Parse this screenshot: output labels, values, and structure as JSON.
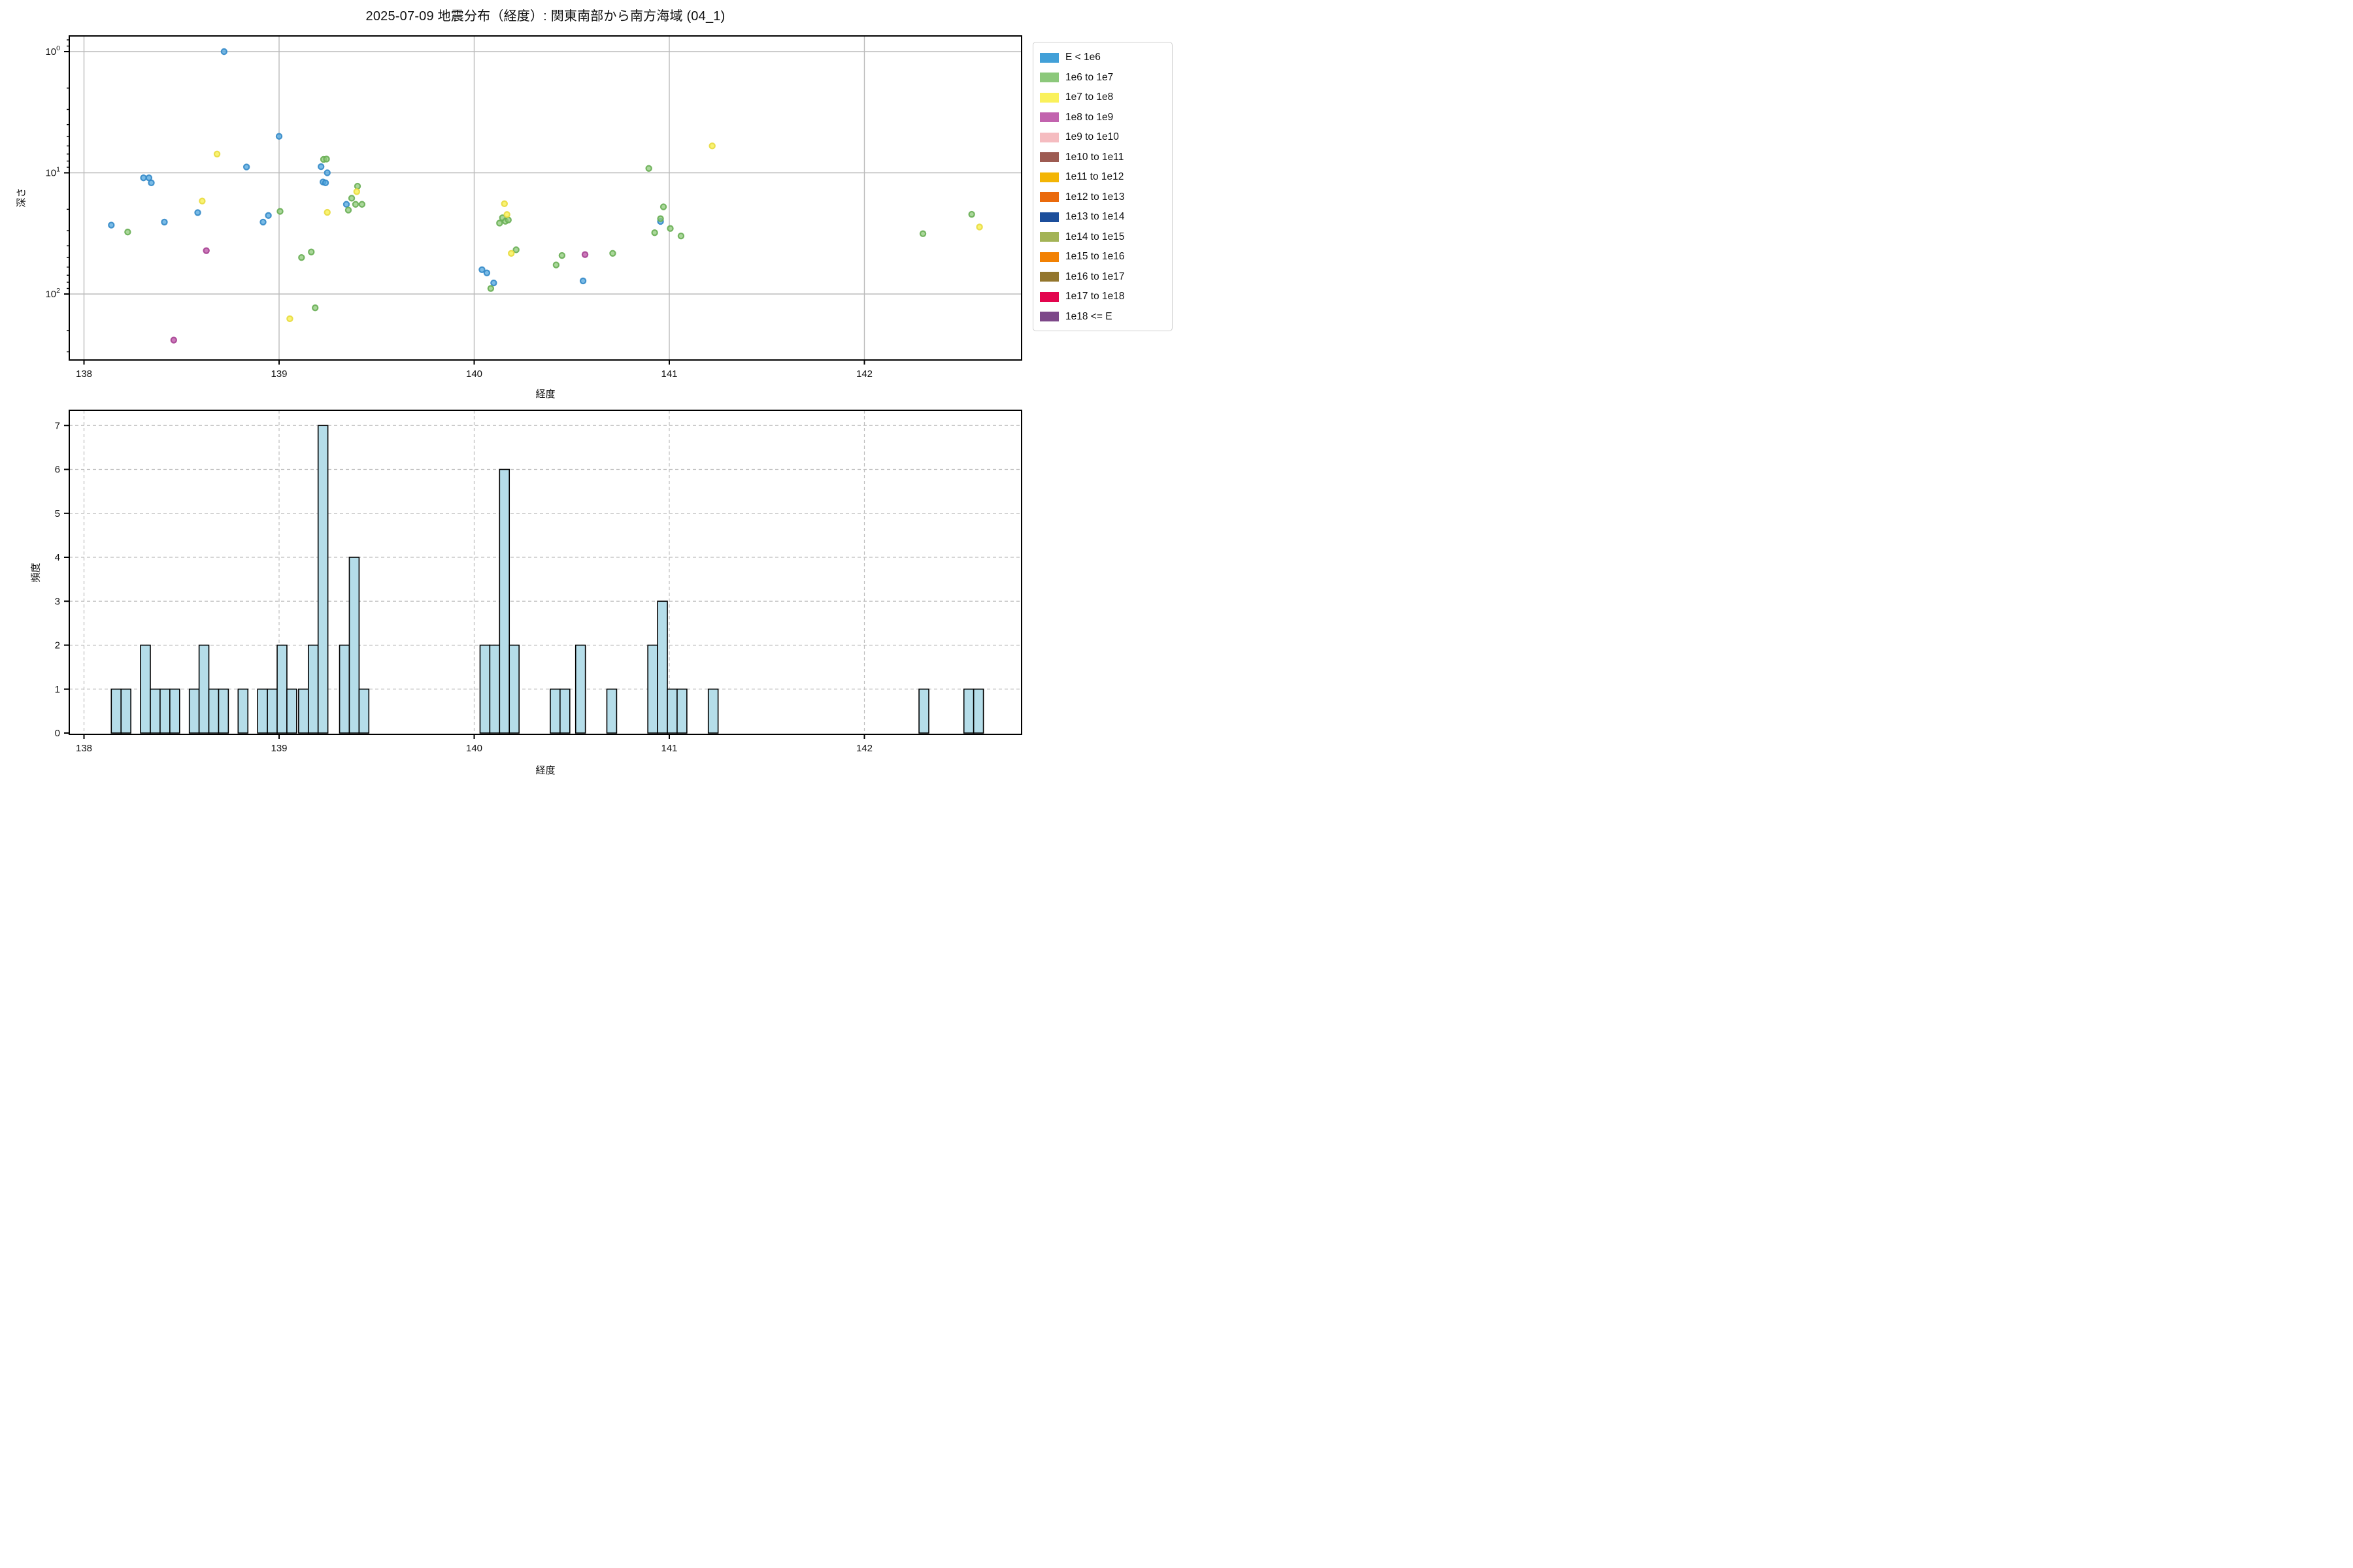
{
  "figure": {
    "title": "2025-07-09 地震分布（経度）: 関東南部から南方海域 (04_1)"
  },
  "chart_data": [
    {
      "type": "scatter",
      "title": "2025-07-09 地震分布（経度）: 関東南部から南方海域 (04_1)",
      "xlabel": "経度",
      "ylabel": "深さ",
      "x_ticks": [
        138,
        139,
        140,
        141,
        142
      ],
      "xlim": [
        137.925,
        142.805
      ],
      "y_scale": "log_inverted_depth",
      "y_tick_exponents": [
        0,
        1,
        2
      ],
      "y_minor_depths": [
        0.8,
        0.9,
        2,
        3,
        4,
        5,
        6,
        7,
        8,
        9,
        20,
        30,
        40,
        50,
        60,
        70,
        80,
        90,
        200,
        300
      ],
      "ylim_depth": [
        0.74,
        352
      ],
      "grid": "solid",
      "series": [
        {
          "name": "E < 1e6",
          "fill": "rgba(77,164,222,0.75)",
          "edge": "rgba(52,138,200,0.9)",
          "points": [
            [
              138.14,
              27
            ],
            [
              138.305,
              11
            ],
            [
              138.333,
              11
            ],
            [
              138.345,
              12.1
            ],
            [
              138.412,
              25.5
            ],
            [
              138.583,
              21.3
            ],
            [
              138.718,
              1.0
            ],
            [
              138.833,
              8.95
            ],
            [
              138.918,
              25.5
            ],
            [
              138.945,
              22.5
            ],
            [
              139.0,
              5.0
            ],
            [
              139.215,
              8.9
            ],
            [
              139.225,
              11.9
            ],
            [
              139.238,
              12.1
            ],
            [
              139.247,
              10.0
            ],
            [
              139.345,
              18.2
            ],
            [
              140.04,
              63
            ],
            [
              140.065,
              67
            ],
            [
              140.1,
              81
            ],
            [
              140.558,
              78
            ],
            [
              140.955,
              25.2
            ]
          ]
        },
        {
          "name": "1e6 to 1e7",
          "fill": "rgba(141,201,120,0.75)",
          "edge": "rgba(104,174,84,0.9)",
          "points": [
            [
              138.224,
              30.8
            ],
            [
              139.005,
              20.8
            ],
            [
              139.115,
              50
            ],
            [
              139.165,
              45
            ],
            [
              139.185,
              130
            ],
            [
              139.228,
              7.75
            ],
            [
              139.243,
              7.7
            ],
            [
              139.355,
              20.3
            ],
            [
              139.372,
              16.2
            ],
            [
              139.392,
              18.2
            ],
            [
              139.402,
              12.9
            ],
            [
              139.425,
              18.2
            ],
            [
              140.085,
              90
            ],
            [
              140.13,
              26
            ],
            [
              140.145,
              23.5
            ],
            [
              140.16,
              25.1
            ],
            [
              140.175,
              24.5
            ],
            [
              140.215,
              43.2
            ],
            [
              140.42,
              57.6
            ],
            [
              140.45,
              48.1
            ],
            [
              140.71,
              46.2
            ],
            [
              140.895,
              9.2
            ],
            [
              140.925,
              31.2
            ],
            [
              140.955,
              23.9
            ],
            [
              140.97,
              19.1
            ],
            [
              141.005,
              28.8
            ],
            [
              141.06,
              33.2
            ],
            [
              142.3,
              31.8
            ],
            [
              142.55,
              22.0
            ]
          ]
        },
        {
          "name": "1e7 to 1e8",
          "fill": "rgba(248,241,92,0.85)",
          "edge": "rgba(233,220,70,0.95)",
          "points": [
            [
              138.606,
              17.1
            ],
            [
              138.682,
              7.0
            ],
            [
              139.055,
              160
            ],
            [
              139.247,
              21.2
            ],
            [
              139.398,
              14.3
            ],
            [
              140.155,
              18.0
            ],
            [
              140.168,
              22.1
            ],
            [
              140.19,
              46.2
            ],
            [
              141.22,
              6.0
            ],
            [
              142.59,
              28.0
            ]
          ]
        },
        {
          "name": "1e8 to 1e9",
          "fill": "rgba(194,99,174,0.85)",
          "edge": "rgba(170,72,150,0.95)",
          "points": [
            [
              138.46,
              240
            ],
            [
              138.627,
              43.9
            ],
            [
              140.568,
              47.3
            ]
          ]
        }
      ]
    },
    {
      "type": "bar",
      "xlabel": "経度",
      "ylabel": "頻度",
      "x_ticks": [
        138,
        139,
        140,
        141,
        142
      ],
      "xlim": [
        137.925,
        142.805
      ],
      "y_ticks": [
        0,
        1,
        2,
        3,
        4,
        5,
        6,
        7
      ],
      "ylim": [
        0,
        7.35
      ],
      "grid": "dashed",
      "bin_width": 0.05,
      "bar_color": "#b5dde9",
      "bar_edge": "#000000",
      "bars": [
        [
          138.14,
          1
        ],
        [
          138.19,
          1
        ],
        [
          138.29,
          2
        ],
        [
          138.34,
          1
        ],
        [
          138.39,
          1
        ],
        [
          138.44,
          1
        ],
        [
          138.54,
          1
        ],
        [
          138.59,
          2
        ],
        [
          138.64,
          1
        ],
        [
          138.69,
          1
        ],
        [
          138.79,
          1
        ],
        [
          138.89,
          1
        ],
        [
          138.94,
          1
        ],
        [
          138.99,
          2
        ],
        [
          139.04,
          1
        ],
        [
          139.1,
          1
        ],
        [
          139.15,
          2
        ],
        [
          139.2,
          7
        ],
        [
          139.31,
          2
        ],
        [
          139.36,
          4
        ],
        [
          139.41,
          1
        ],
        [
          140.03,
          2
        ],
        [
          140.08,
          2
        ],
        [
          140.13,
          6
        ],
        [
          140.18,
          2
        ],
        [
          140.39,
          1
        ],
        [
          140.44,
          1
        ],
        [
          140.52,
          2
        ],
        [
          140.68,
          1
        ],
        [
          140.89,
          2
        ],
        [
          140.94,
          3
        ],
        [
          140.99,
          1
        ],
        [
          141.04,
          1
        ],
        [
          141.2,
          1
        ],
        [
          142.28,
          1
        ],
        [
          142.51,
          1
        ],
        [
          142.56,
          1
        ]
      ]
    }
  ],
  "legend": {
    "items": [
      {
        "label": "E < 1e6",
        "color": "#42a0d8"
      },
      {
        "label": "1e6 to 1e7",
        "color": "#8cc87b"
      },
      {
        "label": "1e7 to 1e8",
        "color": "#faf15b"
      },
      {
        "label": "1e8 to 1e9",
        "color": "#c263ae"
      },
      {
        "label": "1e9 to 1e10",
        "color": "#f5bcc0"
      },
      {
        "label": "1e10 to 1e11",
        "color": "#9d5b52"
      },
      {
        "label": "1e11 to 1e12",
        "color": "#f3b505"
      },
      {
        "label": "1e12 to 1e13",
        "color": "#ea6a0c"
      },
      {
        "label": "1e13 to 1e14",
        "color": "#1c4e9b"
      },
      {
        "label": "1e14 to 1e15",
        "color": "#a3b356"
      },
      {
        "label": "1e15 to 1e16",
        "color": "#f28103"
      },
      {
        "label": "1e16 to 1e17",
        "color": "#93762d"
      },
      {
        "label": "1e17 to 1e18",
        "color": "#e3054e"
      },
      {
        "label": "1e18 <= E",
        "color": "#7d4889"
      }
    ]
  }
}
